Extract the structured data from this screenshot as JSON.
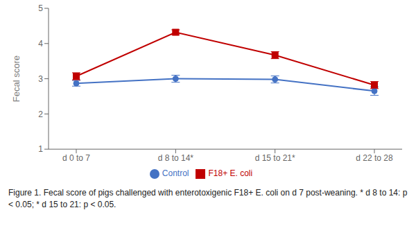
{
  "chart_data": {
    "type": "line",
    "categories": [
      "d 0 to 7",
      "d 8 to 14*",
      "d 15 to 21*",
      "d 22 to 28"
    ],
    "series": [
      {
        "name": "Control",
        "color": "#4472C4",
        "marker": "circle",
        "values": [
          2.87,
          3.0,
          2.98,
          2.65
        ],
        "errors": [
          0.08,
          0.1,
          0.1,
          0.12
        ]
      },
      {
        "name": "F18+ E. coli",
        "color": "#C00000",
        "marker": "square",
        "values": [
          3.07,
          4.32,
          3.67,
          2.82
        ],
        "errors": [
          0.1,
          0.07,
          0.1,
          0.1
        ]
      }
    ],
    "ylabel": "Fecal score",
    "ylim": [
      1,
      5
    ],
    "yticks": [
      1,
      2,
      3,
      4,
      5
    ],
    "grid": false,
    "legend": "bottom",
    "annotations": [
      "Figure 1. Fecal score of pigs challenged with enterotoxigenic F18+ E. coli on d 7 post-weaning. * d 8 to 14: p < 0.05; * d 15 to 21: p < 0.05."
    ]
  }
}
